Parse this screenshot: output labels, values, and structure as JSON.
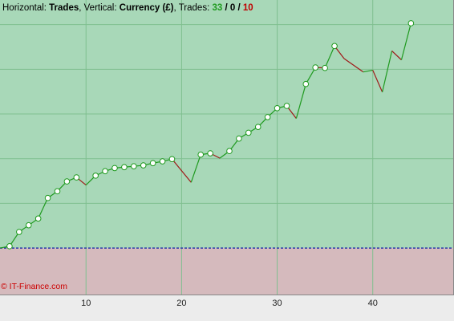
{
  "header": {
    "horizontal_label": "Horizontal:",
    "horizontal_value": "Trades",
    "vertical_label": "Vertical:",
    "vertical_value": "Currency (£)",
    "trades_label": "Trades:",
    "wins": "33",
    "sep1": "/",
    "even": "0",
    "sep2": "/",
    "losses": "10"
  },
  "watermark": "© IT-Finance.com",
  "colors": {
    "profit_bg": "#a8d8b8",
    "loss_bg": "#d5babd",
    "grid": "#7fbf8f",
    "up_line": "#1f9a1f",
    "down_line": "#a01818",
    "baseline": "#2a3aa8",
    "marker_fill": "#ffffff",
    "marker_stroke": "#1f9a1f"
  },
  "chart_data": {
    "type": "line",
    "title": "",
    "xlabel": "",
    "ylabel": "",
    "x_ticks": [
      10,
      20,
      30,
      40
    ],
    "x_range": [
      1,
      48.5
    ],
    "y_range": [
      -104,
      555
    ],
    "y_gridlines": [
      0,
      100,
      200,
      300,
      400,
      500
    ],
    "y_tick_labels_visible": false,
    "grid": true,
    "baseline": 0,
    "series": [
      {
        "values": [
          [
            1,
            0
          ],
          [
            2,
            4
          ],
          [
            3,
            36
          ],
          [
            4,
            51
          ],
          [
            5,
            66
          ],
          [
            6,
            112
          ],
          [
            7,
            127
          ],
          [
            8,
            149
          ],
          [
            9,
            158
          ],
          [
            10,
            141
          ],
          [
            11,
            162
          ],
          [
            12,
            172
          ],
          [
            13,
            179
          ],
          [
            14,
            181
          ],
          [
            15,
            183
          ],
          [
            16,
            185
          ],
          [
            17,
            190
          ],
          [
            18,
            194
          ],
          [
            19,
            199
          ],
          [
            21,
            147
          ],
          [
            22,
            209
          ],
          [
            23,
            212
          ],
          [
            24,
            201
          ],
          [
            25,
            217
          ],
          [
            26,
            245
          ],
          [
            27,
            258
          ],
          [
            28,
            271
          ],
          [
            29,
            293
          ],
          [
            30,
            313
          ],
          [
            31,
            318
          ],
          [
            32,
            290
          ],
          [
            33,
            367
          ],
          [
            34,
            404
          ],
          [
            35,
            403
          ],
          [
            36,
            452
          ],
          [
            37,
            424
          ],
          [
            39,
            394
          ],
          [
            40,
            398
          ],
          [
            41,
            349
          ],
          [
            42,
            441
          ],
          [
            43,
            421
          ],
          [
            44,
            503
          ]
        ],
        "markers_at_x": [
          2,
          3,
          4,
          5,
          6,
          7,
          8,
          9,
          11,
          12,
          13,
          14,
          15,
          16,
          17,
          18,
          19,
          22,
          23,
          25,
          26,
          27,
          28,
          29,
          30,
          31,
          33,
          34,
          35,
          36,
          44
        ]
      }
    ]
  }
}
